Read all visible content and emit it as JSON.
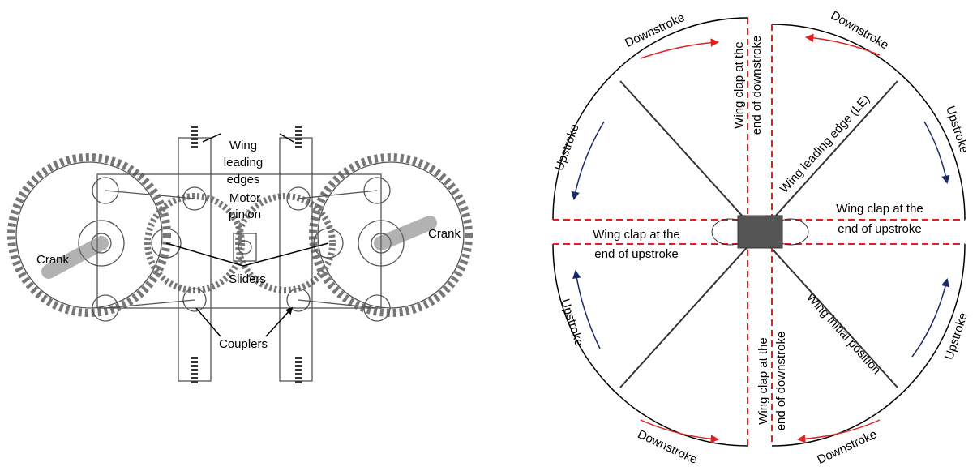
{
  "left": {
    "wing_leading_edges": [
      "Wing",
      "leading",
      "edges"
    ],
    "motor_pinion": [
      "Motor",
      "pinion"
    ],
    "crank_left": "Crank",
    "crank_right": "Crank",
    "sliders": "Sliders",
    "couplers": "Couplers"
  },
  "right": {
    "downstroke": [
      "Downstroke",
      "Downstroke",
      "Downstroke",
      "Downstroke"
    ],
    "upstroke": [
      "Upstroke",
      "Upstroke",
      "Upstroke",
      "Upstroke"
    ],
    "clap_downstroke": [
      [
        "Wing clap at the",
        "end of downstroke"
      ],
      [
        "Wing clap at the",
        "end of downstroke"
      ]
    ],
    "clap_upstroke": [
      [
        "Wing clap at the",
        "end of upstroke"
      ],
      [
        "Wing clap at the",
        "end of upstroke"
      ]
    ],
    "leading_edge": "Wing leading edge (LE)",
    "initial_position": "Wing initial position"
  }
}
